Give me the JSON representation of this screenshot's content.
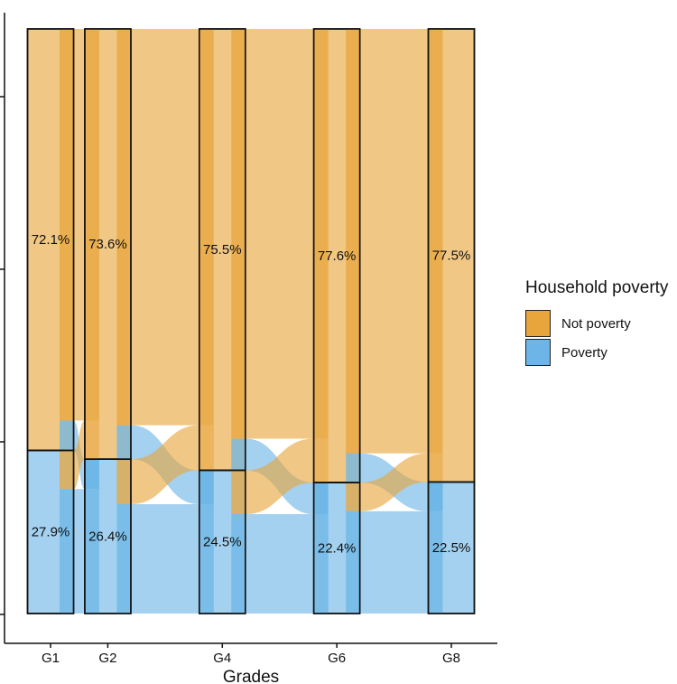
{
  "chart_data": {
    "type": "alluvial",
    "title": "",
    "xlabel": "Grades",
    "ylabel": "",
    "ylim": [
      0,
      1
    ],
    "categories": [
      "G1",
      "G2",
      "G4",
      "G6",
      "G8"
    ],
    "x_positions": [
      1,
      2,
      4,
      6,
      8
    ],
    "series": [
      {
        "name": "Not poverty",
        "values": [
          72.1,
          73.6,
          75.5,
          77.6,
          77.5
        ],
        "labels": [
          "72.1%",
          "73.6%",
          "75.5%",
          "77.6%",
          "77.5%"
        ]
      },
      {
        "name": "Poverty",
        "values": [
          27.9,
          26.4,
          24.5,
          22.4,
          22.5
        ],
        "labels": [
          "27.9%",
          "26.4%",
          "24.5%",
          "22.4%",
          "22.5%"
        ]
      }
    ],
    "flows": [
      {
        "from_grade": "G1",
        "to_grade": "G2",
        "not_to_poverty": 5.1,
        "poverty_to_not": 6.6
      },
      {
        "from_grade": "G2",
        "to_grade": "G4",
        "not_to_poverty": 5.8,
        "poverty_to_not": 7.7
      },
      {
        "from_grade": "G4",
        "to_grade": "G6",
        "not_to_poverty": 5.4,
        "poverty_to_not": 7.5
      },
      {
        "from_grade": "G6",
        "to_grade": "G8",
        "not_to_poverty": 5.0,
        "poverty_to_not": 4.9
      }
    ],
    "legend": {
      "title": "Household poverty",
      "position": "right"
    }
  },
  "colors": {
    "not_poverty": "#E8A53C",
    "poverty": "#6CB5E6",
    "axis": "#111111"
  }
}
